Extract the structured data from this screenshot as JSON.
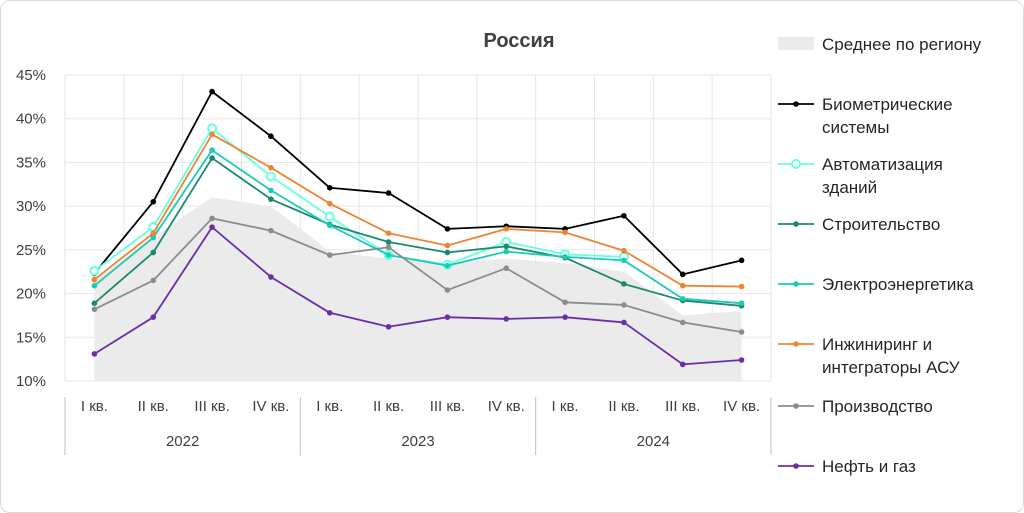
{
  "chart_data": {
    "type": "line",
    "title": "Россия",
    "xlabel": "",
    "ylabel": "",
    "ylim": [
      10,
      45
    ],
    "y_ticks": [
      "10%",
      "15%",
      "20%",
      "25%",
      "30%",
      "35%",
      "40%",
      "45%"
    ],
    "y_tick_values": [
      10,
      15,
      20,
      25,
      30,
      35,
      40,
      45
    ],
    "categories": [
      "I кв.",
      "II кв.",
      "III кв.",
      "IV кв.",
      "I кв.",
      "II кв.",
      "III кв.",
      "IV кв.",
      "I кв.",
      "II кв.",
      "III кв.",
      "IV кв."
    ],
    "groups": [
      {
        "label": "2022",
        "count": 4
      },
      {
        "label": "2023",
        "count": 4
      },
      {
        "label": "2024",
        "count": 4
      }
    ],
    "grid": true,
    "legend_position": "right",
    "area": {
      "name": "Среднее по региону",
      "color": "#ebebeb",
      "values": [
        21.5,
        26.5,
        31.0,
        30.0,
        24.8,
        24.0,
        23.5,
        24.0,
        23.5,
        22.5,
        17.5,
        18.0
      ]
    },
    "series": [
      {
        "name": "Биометрические системы",
        "color": "#000000",
        "marker": "dot",
        "values": [
          22.3,
          30.5,
          43.1,
          38.0,
          32.1,
          31.5,
          27.4,
          27.7,
          27.4,
          28.9,
          22.2,
          23.8
        ]
      },
      {
        "name": "Автоматизация зданий",
        "color": "#66ffe0",
        "marker": "ring",
        "values": [
          22.6,
          27.6,
          38.9,
          33.4,
          28.8,
          24.4,
          23.3,
          25.9,
          24.5,
          24.2,
          null,
          null
        ]
      },
      {
        "name": "Строительство",
        "color": "#1a8a6e",
        "marker": "dot",
        "values": [
          18.9,
          24.7,
          35.5,
          30.8,
          27.9,
          25.9,
          24.7,
          25.4,
          24.1,
          21.1,
          19.2,
          18.6
        ]
      },
      {
        "name": "Электроэнергетика",
        "color": "#1dc9b8",
        "marker": "dot",
        "values": [
          20.9,
          26.4,
          36.4,
          31.8,
          27.8,
          24.4,
          23.2,
          24.8,
          24.2,
          23.8,
          19.4,
          18.9
        ]
      },
      {
        "name": "Инжиниринг и интеграторы АСУ",
        "color": "#ee8535",
        "marker": "dot",
        "values": [
          21.6,
          26.9,
          38.2,
          34.4,
          30.3,
          26.9,
          25.5,
          27.4,
          27.0,
          24.9,
          20.9,
          20.8
        ]
      },
      {
        "name": "Производство",
        "color": "#8c8c8c",
        "marker": "dot",
        "values": [
          18.2,
          21.5,
          28.6,
          27.2,
          24.4,
          25.3,
          20.4,
          22.9,
          19.0,
          18.7,
          16.7,
          15.6
        ]
      },
      {
        "name": "Нефть и газ",
        "color": "#6a2ea8",
        "marker": "dot",
        "values": [
          13.1,
          17.3,
          27.6,
          21.9,
          17.8,
          16.2,
          17.3,
          17.1,
          17.3,
          16.7,
          11.9,
          12.4
        ]
      }
    ],
    "legend": [
      {
        "key": "area",
        "lines": [
          "Среднее по региону"
        ]
      },
      {
        "key": "s0",
        "lines": [
          "Биометрические",
          "системы"
        ]
      },
      {
        "key": "s1",
        "lines": [
          "Автоматизация",
          "зданий"
        ]
      },
      {
        "key": "s2",
        "lines": [
          "Строительство"
        ]
      },
      {
        "key": "s3",
        "lines": [
          "Электроэнергетика"
        ]
      },
      {
        "key": "s4",
        "lines": [
          "Инжиниринг и",
          "интеграторы АСУ"
        ]
      },
      {
        "key": "s5",
        "lines": [
          "Производство"
        ]
      },
      {
        "key": "s6",
        "lines": [
          "Нефть и газ"
        ]
      }
    ]
  }
}
